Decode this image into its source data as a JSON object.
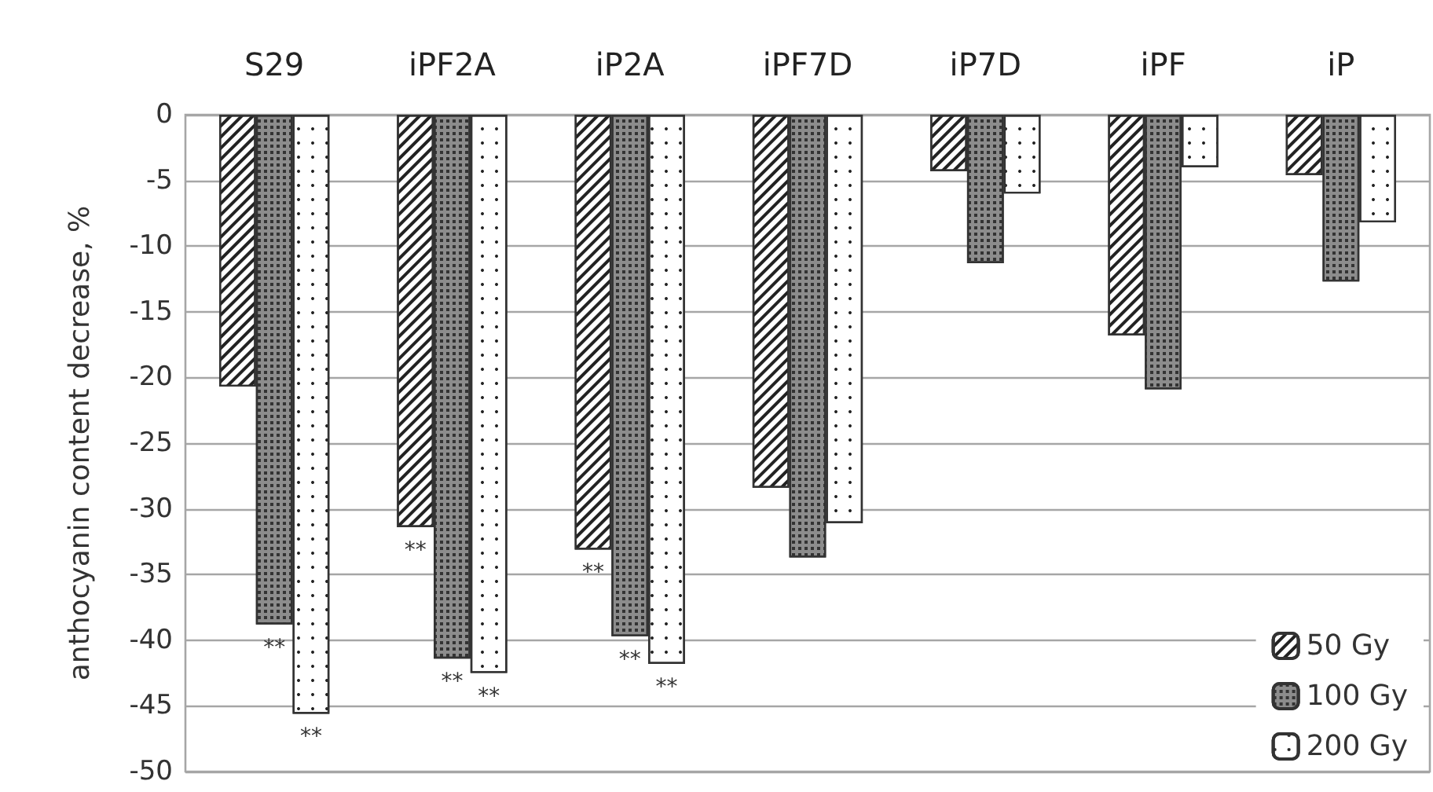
{
  "chart_data": {
    "type": "bar",
    "ylabel": "anthocyanin content decrease, %",
    "categories": [
      "S29",
      "iPF2A",
      "iP2A",
      "iPF7D",
      "iP7D",
      "iPF",
      "iP"
    ],
    "series": [
      {
        "name": "50 Gy",
        "color": "#ffffff",
        "values": [
          -20.7,
          -31.4,
          -33.1,
          -28.4,
          -4.3,
          -16.8,
          -4.6
        ],
        "value_labels": [
          null,
          "**",
          "**",
          null,
          null,
          null,
          null
        ]
      },
      {
        "name": "100 Gy",
        "color": "#8c8c8c",
        "values": [
          -38.8,
          -41.4,
          -39.7,
          -33.7,
          -11.3,
          -20.9,
          -12.7
        ],
        "value_labels": [
          "**",
          "**",
          "**",
          null,
          null,
          null,
          null
        ]
      },
      {
        "name": "200 Gy",
        "color": "#ffffff",
        "values": [
          -45.6,
          -42.5,
          -41.8,
          -31.1,
          -6.0,
          -4.0,
          -8.2
        ],
        "value_labels": [
          "**",
          "**",
          "**",
          null,
          null,
          null,
          null
        ]
      }
    ],
    "ylim": [
      -50,
      0
    ],
    "yticks": [
      -50,
      -45,
      -40,
      -35,
      -30,
      -25,
      -20,
      -15,
      -10,
      -5,
      0
    ],
    "grid": "y",
    "legend": "bottom right"
  }
}
